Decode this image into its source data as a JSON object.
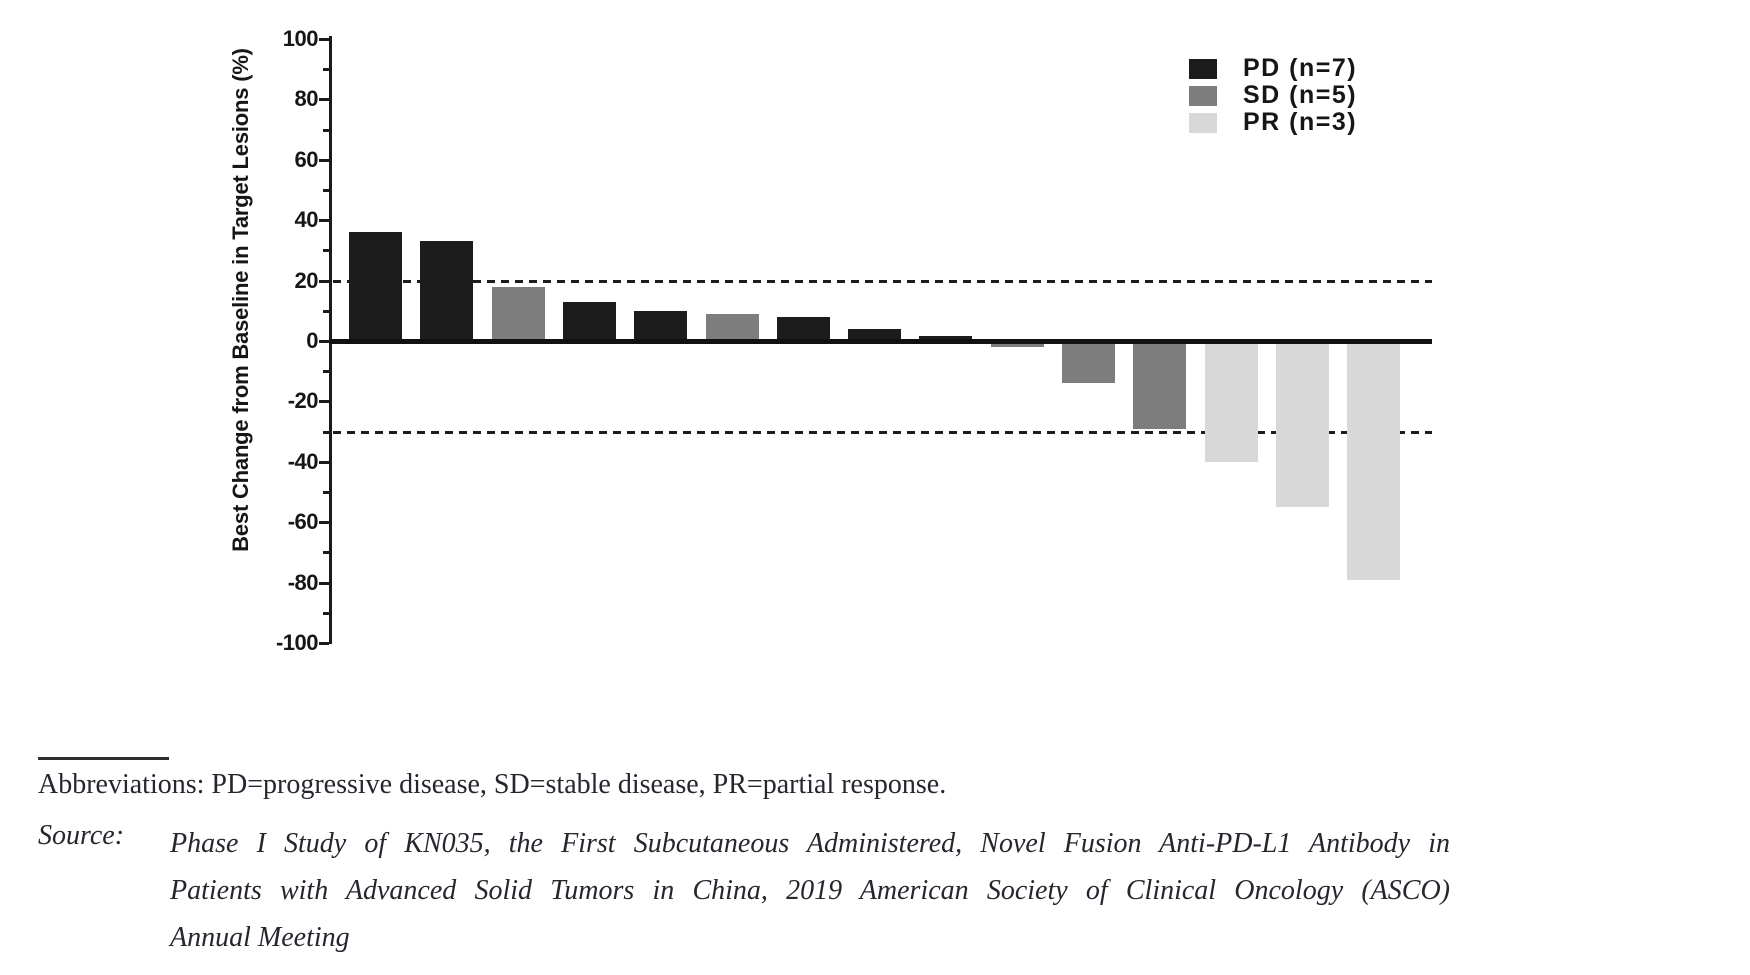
{
  "chart_data": {
    "type": "bar",
    "title": "",
    "ylabel": "Best Change from Baseline in Target Lesions (%)",
    "xlabel": "",
    "ylim": [
      -100,
      100
    ],
    "yticks": [
      100,
      80,
      60,
      40,
      20,
      0,
      -20,
      -40,
      -60,
      -80,
      -100
    ],
    "ytick_minor_interval": 10,
    "grid": false,
    "reference_lines": [
      20,
      -30
    ],
    "legend_position": "top-right",
    "groups": {
      "PD": {
        "color": "#1c1c1c"
      },
      "SD": {
        "color": "#7d7d7d"
      },
      "PR": {
        "color": "#d8d8d8"
      }
    },
    "legend": [
      {
        "group": "PD",
        "label": "PD (n=7)"
      },
      {
        "group": "SD",
        "label": "SD (n=5)"
      },
      {
        "group": "PR",
        "label": "PR (n=3)"
      }
    ],
    "bars": [
      {
        "value": 36,
        "group": "PD"
      },
      {
        "value": 33,
        "group": "PD"
      },
      {
        "value": 18,
        "group": "SD"
      },
      {
        "value": 13,
        "group": "PD"
      },
      {
        "value": 10,
        "group": "PD"
      },
      {
        "value": 9,
        "group": "SD"
      },
      {
        "value": 8,
        "group": "PD"
      },
      {
        "value": 4,
        "group": "PD"
      },
      {
        "value": 1.5,
        "group": "PD"
      },
      {
        "value": -2,
        "group": "SD"
      },
      {
        "value": -14,
        "group": "SD"
      },
      {
        "value": -29,
        "group": "SD"
      },
      {
        "value": -40,
        "group": "PR"
      },
      {
        "value": -55,
        "group": "PR"
      },
      {
        "value": -79,
        "group": "PR"
      }
    ]
  },
  "footer": {
    "abbreviations": "Abbreviations: PD=progressive disease, SD=stable disease, PR=partial response.",
    "source_label": "Source:",
    "source_lines": [
      "Phase I Study of KN035, the First Subcutaneous Administered, Novel Fusion Anti-PD-L1 Antibody in",
      "Patients with Advanced Solid Tumors in China, 2019 American Society of Clinical Oncology (ASCO)",
      "Annual Meeting"
    ]
  }
}
